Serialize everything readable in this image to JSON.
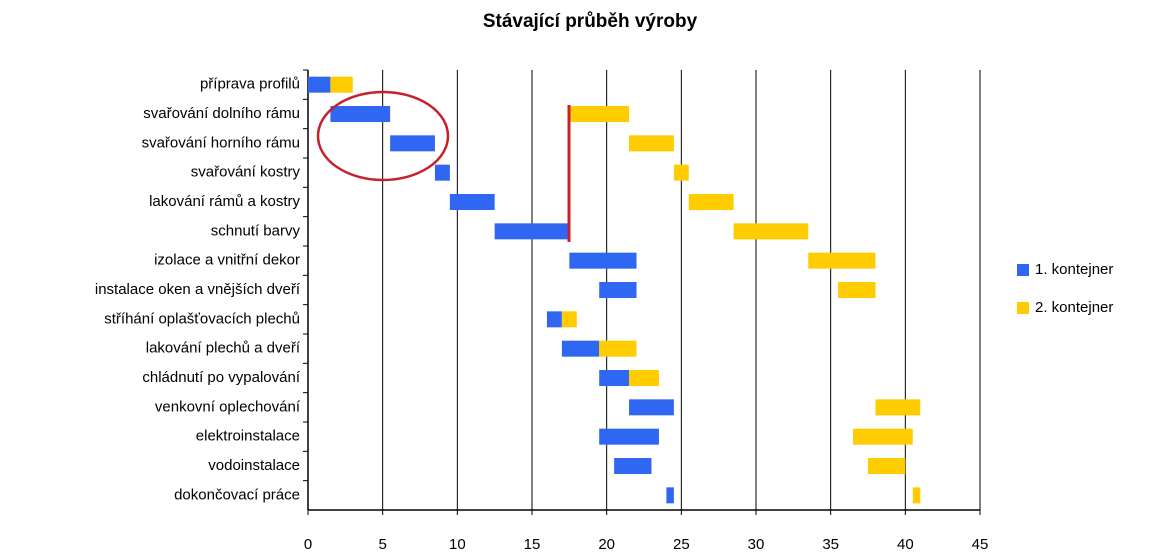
{
  "chart_data": {
    "type": "gantt",
    "title": "Stávající průběh výroby",
    "categories": [
      "příprava profilů",
      "svařování dolního rámu",
      "svařování horního rámu",
      "svařování kostry",
      "lakování rámů a kostry",
      "schnutí barvy",
      "izolace a vnitřní dekor",
      "instalace oken a vnějších dveří",
      "stříhání oplašťovacích plechů",
      "lakování plechů a dveří",
      "chládnutí po vypalování",
      "venkovní oplechování",
      "elektroinstalace",
      "vodoinstalace",
      "dokončovací práce"
    ],
    "series": [
      {
        "name": "1. kontejner",
        "color": "#2f66f2",
        "values": [
          [
            0,
            1.5
          ],
          [
            1.5,
            5.5
          ],
          [
            5.5,
            8.5
          ],
          [
            8.5,
            9.5
          ],
          [
            9.5,
            12.5
          ],
          [
            12.5,
            17.5
          ],
          [
            17.5,
            22
          ],
          [
            19.5,
            22
          ],
          [
            16,
            17
          ],
          [
            17,
            19.5
          ],
          [
            19.5,
            21.5
          ],
          [
            21.5,
            24.5
          ],
          [
            19.5,
            23.5
          ],
          [
            20.5,
            23
          ],
          [
            24,
            24.5
          ]
        ]
      },
      {
        "name": "2. kontejner",
        "color": "#ffcc00",
        "values": [
          [
            1.5,
            3
          ],
          [
            17.5,
            21.5
          ],
          [
            21.5,
            24.5
          ],
          [
            24.5,
            25.5
          ],
          [
            25.5,
            28.5
          ],
          [
            28.5,
            33.5
          ],
          [
            33.5,
            38
          ],
          [
            35.5,
            38
          ],
          [
            17,
            18
          ],
          [
            19.5,
            22
          ],
          [
            21.5,
            23.5
          ],
          [
            38,
            41
          ],
          [
            36.5,
            40.5
          ],
          [
            37.5,
            40
          ],
          [
            40.5,
            41
          ]
        ]
      }
    ],
    "xlim": [
      0,
      45
    ],
    "xticks": [
      0,
      5,
      10,
      15,
      20,
      25,
      30,
      35,
      40,
      45
    ],
    "grid": true
  }
}
